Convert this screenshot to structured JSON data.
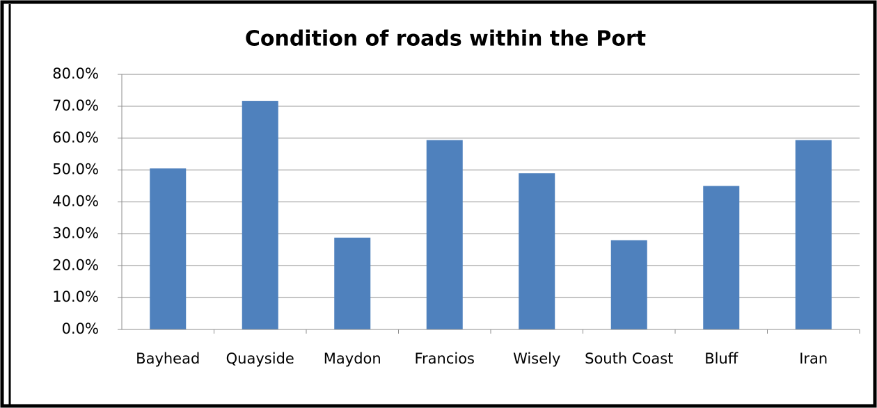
{
  "chart_data": {
    "type": "bar",
    "title": "Condition of roads within the Port",
    "categories": [
      "Bayhead",
      "Quayside",
      "Maydon",
      "Francios",
      "Wisely",
      "South Coast",
      "Bluff",
      "Iran"
    ],
    "values": [
      50.5,
      71.7,
      28.8,
      59.4,
      49.0,
      28.0,
      45.0,
      59.4
    ],
    "color": "#4f81bd",
    "ylim": [
      0,
      80
    ],
    "yticks": [
      {
        "value": 0,
        "label": "0.0%"
      },
      {
        "value": 10,
        "label": "10.0%"
      },
      {
        "value": 20,
        "label": "20.0%"
      },
      {
        "value": 30,
        "label": "30.0%"
      },
      {
        "value": 40,
        "label": "40.0%"
      },
      {
        "value": 50,
        "label": "50.0%"
      },
      {
        "value": 60,
        "label": "60.0%"
      },
      {
        "value": 70,
        "label": "70.0%"
      },
      {
        "value": 80,
        "label": "80.0%"
      }
    ],
    "grid": true
  }
}
